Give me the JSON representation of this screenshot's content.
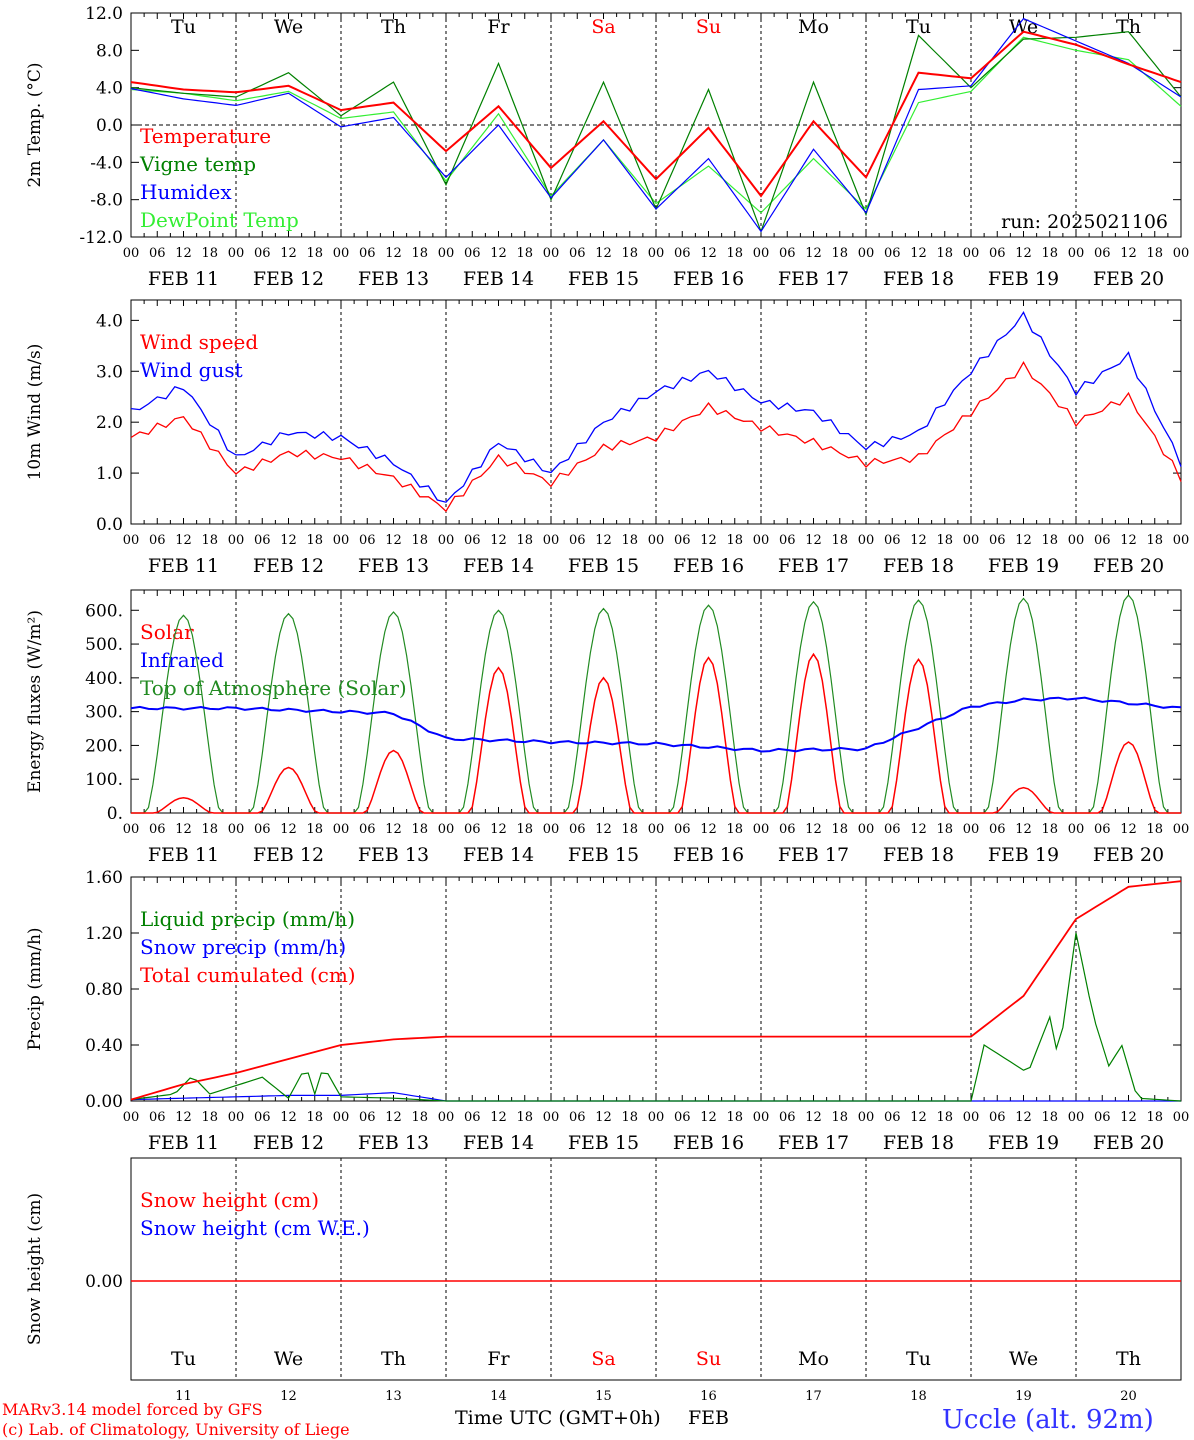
{
  "colors": {
    "red": "#ff0000",
    "green": "#008000",
    "blue": "#0000ff",
    "lightgreen": "#33ee33",
    "darkgreen": "#228b22",
    "black": "#000000"
  },
  "chart_data": [
    {
      "type": "line",
      "ylabel": "2m Temp. (°C)",
      "ylim": [
        -12,
        12
      ],
      "yticks": [
        "12.0",
        "8.0",
        "4.0",
        "0.0",
        "-4.0",
        "-8.0",
        "-12.0"
      ],
      "weekdays": [
        "Tu",
        "We",
        "Th",
        "Fr",
        "Sa",
        "Su",
        "Mo",
        "Tu",
        "We",
        "Th"
      ],
      "weekday_colors": [
        "#000000",
        "#000000",
        "#000000",
        "#000000",
        "#ff0000",
        "#ff0000",
        "#000000",
        "#000000",
        "#000000",
        "#000000"
      ],
      "run_label": "run: 2025021106",
      "legend": [
        {
          "name": "Temperature",
          "color": "#ff0000"
        },
        {
          "name": "Vigne temp",
          "color": "#008000"
        },
        {
          "name": "Humidex",
          "color": "#0000ff"
        },
        {
          "name": "DewPoint Temp",
          "color": "#33ee33"
        }
      ],
      "x_hours": [
        0,
        12,
        24,
        36,
        48,
        60,
        72,
        84,
        96,
        108,
        120,
        132,
        144,
        156,
        168,
        180,
        192,
        204,
        216,
        228,
        240
      ],
      "series": [
        {
          "name": "Temperature",
          "values": [
            4.6,
            3.8,
            3.5,
            4.2,
            1.6,
            2.4,
            -2.8,
            2.0,
            -4.6,
            0.4,
            -5.8,
            -0.3,
            -7.6,
            0.4,
            -5.6,
            5.6,
            5.0,
            10.0,
            8.6,
            6.5,
            4.6
          ]
        },
        {
          "name": "Vigne temp",
          "values": [
            4.0,
            3.4,
            3.0,
            5.6,
            1.0,
            4.6,
            -6.4,
            6.6,
            -8.0,
            4.6,
            -9.0,
            3.8,
            -11.4,
            4.6,
            -9.6,
            9.6,
            4.0,
            9.2,
            9.4,
            10.0,
            3.0
          ]
        },
        {
          "name": "Humidex",
          "values": [
            3.9,
            2.8,
            2.1,
            3.4,
            -0.2,
            0.8,
            -5.6,
            0.0,
            -7.8,
            -1.6,
            -9.0,
            -3.6,
            -11.4,
            -2.6,
            -9.4,
            3.8,
            4.2,
            11.4,
            9.0,
            6.6,
            3.0
          ]
        },
        {
          "name": "DewPoint Temp",
          "values": [
            3.8,
            3.4,
            2.6,
            3.6,
            0.7,
            1.4,
            -6.0,
            1.2,
            -7.6,
            -1.6,
            -8.4,
            -4.4,
            -9.4,
            -3.6,
            -9.0,
            2.4,
            3.6,
            9.4,
            8.0,
            7.0,
            2.0
          ]
        }
      ]
    },
    {
      "type": "line",
      "ylabel": "10m Wind (m/s)",
      "ylim": [
        0,
        4.4
      ],
      "yticks": [
        "4.0",
        "3.0",
        "2.0",
        "1.0",
        "0.0"
      ],
      "legend": [
        {
          "name": "Wind speed",
          "color": "#ff0000"
        },
        {
          "name": "Wind gust",
          "color": "#0000ff"
        }
      ],
      "x_hours": [
        0,
        12,
        24,
        36,
        48,
        60,
        72,
        84,
        96,
        108,
        120,
        132,
        144,
        156,
        168,
        180,
        192,
        204,
        216,
        228,
        240
      ],
      "series": [
        {
          "name": "Wind speed",
          "values": [
            1.7,
            2.1,
            1.0,
            1.4,
            1.3,
            0.9,
            0.3,
            1.3,
            0.8,
            1.5,
            1.7,
            2.3,
            1.9,
            1.6,
            1.2,
            1.3,
            2.2,
            3.1,
            2.0,
            2.5,
            0.9
          ]
        },
        {
          "name": "Wind gust",
          "values": [
            2.2,
            2.7,
            1.3,
            1.8,
            1.7,
            1.2,
            0.4,
            1.6,
            1.0,
            2.0,
            2.6,
            3.0,
            2.4,
            2.2,
            1.5,
            1.8,
            3.0,
            4.1,
            2.6,
            3.3,
            1.2
          ]
        }
      ]
    },
    {
      "type": "line",
      "ylabel": "Energy fluxes (W/m²)",
      "ylim": [
        0,
        660
      ],
      "yticks": [
        "600.",
        "500.",
        "400.",
        "300.",
        "200.",
        "100.",
        "0."
      ],
      "legend": [
        {
          "name": "Solar",
          "color": "#ff0000"
        },
        {
          "name": "Infrared",
          "color": "#0000ff"
        },
        {
          "name": "Top of Atmosphere (Solar)",
          "color": "#228b22"
        }
      ],
      "toa_peaks": [
        585,
        590,
        595,
        600,
        605,
        615,
        625,
        630,
        635,
        645
      ],
      "solar_peaks": [
        45,
        135,
        185,
        430,
        400,
        460,
        470,
        455,
        75,
        210
      ],
      "infrared": {
        "x_hours": [
          0,
          24,
          48,
          60,
          72,
          96,
          120,
          144,
          168,
          192,
          204,
          216,
          228,
          240
        ],
        "values": [
          310,
          310,
          300,
          295,
          220,
          210,
          205,
          185,
          190,
          315,
          335,
          340,
          325,
          310
        ]
      }
    },
    {
      "type": "line",
      "ylabel": "Precip (mm/h)",
      "ylim": [
        0,
        1.6
      ],
      "yticks": [
        "1.60",
        "1.20",
        "0.80",
        "0.40",
        "0.00"
      ],
      "legend": [
        {
          "name": "Liquid precip (mm/h)",
          "color": "#008000"
        },
        {
          "name": "Snow precip (mm/h)",
          "color": "#0000ff"
        },
        {
          "name": "Total cumulated (cm)",
          "color": "#ff0000"
        }
      ],
      "series": [
        {
          "name": "Total cumulated (cm)",
          "x_hours": [
            0,
            12,
            24,
            36,
            48,
            60,
            72,
            96,
            120,
            144,
            168,
            192,
            204,
            216,
            228,
            240
          ],
          "values": [
            0.01,
            0.12,
            0.2,
            0.3,
            0.4,
            0.44,
            0.46,
            0.46,
            0.46,
            0.46,
            0.46,
            0.46,
            0.75,
            1.3,
            1.53,
            1.57
          ]
        },
        {
          "name": "Liquid precip (mm/h)",
          "x_hours": [
            0,
            10,
            14,
            18,
            30,
            36,
            40,
            42,
            44,
            48,
            60,
            72,
            192,
            195,
            200,
            205,
            210,
            212,
            216,
            220,
            224,
            226,
            230,
            240
          ],
          "values": [
            0.01,
            0.05,
            0.18,
            0.05,
            0.17,
            0.02,
            0.25,
            0.05,
            0.25,
            0.03,
            0.02,
            0.0,
            0.0,
            0.4,
            0.3,
            0.2,
            0.6,
            0.3,
            1.2,
            0.6,
            0.2,
            0.45,
            0.02,
            0.0
          ]
        },
        {
          "name": "Snow precip (mm/h)",
          "x_hours": [
            0,
            12,
            24,
            36,
            48,
            60,
            72,
            240
          ],
          "values": [
            0.01,
            0.02,
            0.03,
            0.04,
            0.04,
            0.06,
            0.0,
            0.0
          ]
        }
      ]
    },
    {
      "type": "line",
      "ylabel": "Snow height (cm)",
      "yticks": [
        "0.00"
      ],
      "legend": [
        {
          "name": "Snow height (cm)",
          "color": "#ff0000"
        },
        {
          "name": "Snow height (cm W.E.)",
          "color": "#0000ff"
        }
      ],
      "weekdays": [
        "Tu",
        "We",
        "Th",
        "Fr",
        "Sa",
        "Su",
        "Mo",
        "Tu",
        "We",
        "Th"
      ],
      "weekday_colors": [
        "#000000",
        "#000000",
        "#000000",
        "#000000",
        "#ff0000",
        "#ff0000",
        "#000000",
        "#000000",
        "#000000",
        "#000000"
      ],
      "day_numbers": [
        "11",
        "12",
        "13",
        "14",
        "15",
        "16",
        "17",
        "18",
        "19",
        "20"
      ],
      "series": [
        {
          "name": "Snow height (cm)",
          "values": [
            0.0,
            0.0
          ]
        }
      ]
    }
  ],
  "x_axis": {
    "hour_labels": [
      "00",
      "06",
      "12",
      "18"
    ],
    "end_label": "00",
    "date_labels": [
      "FEB 11",
      "FEB 12",
      "FEB 13",
      "FEB 14",
      "FEB 15",
      "FEB 16",
      "FEB 17",
      "FEB 18",
      "FEB 19",
      "FEB 20"
    ],
    "title": "Time UTC (GMT+0h)",
    "month": "FEB"
  },
  "footer": {
    "model": "MARv3.14 model forced by GFS",
    "copyright": "(c) Lab. of Climatology, University of Liege",
    "station": "Uccle (alt. 92m)"
  }
}
